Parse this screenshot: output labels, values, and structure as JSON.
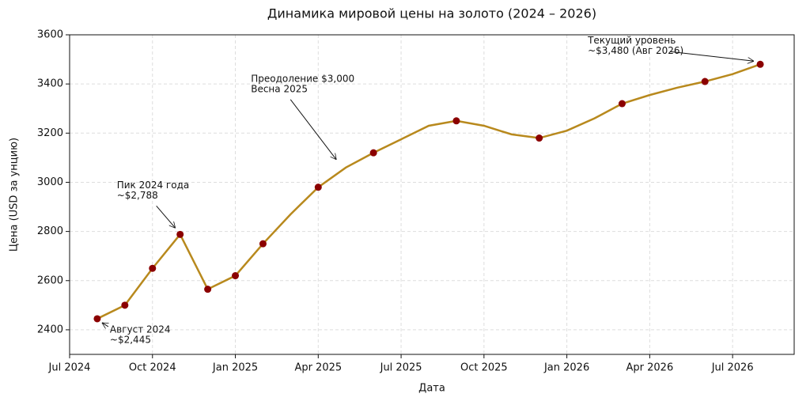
{
  "chart_data": {
    "type": "line",
    "title": "Динамика мировой цены на золото (2024 – 2026)",
    "x_label": "Дата",
    "y_label": "Цена (USD за унцию)",
    "x": [
      "2024-08",
      "2024-09",
      "2024-10",
      "2024-11",
      "2024-12",
      "2025-01",
      "2025-02",
      "2025-03",
      "2025-04",
      "2025-05",
      "2025-06",
      "2025-07",
      "2025-08",
      "2025-09",
      "2025-10",
      "2025-11",
      "2025-12",
      "2026-01",
      "2026-02",
      "2026-03",
      "2026-04",
      "2026-05",
      "2026-06",
      "2026-07",
      "2026-08"
    ],
    "series": [
      {
        "color": "#b8891d",
        "values": [
          2445,
          2500,
          2650,
          2788,
          2565,
          2620,
          2750,
          2870,
          2980,
          3060,
          3120,
          3175,
          3230,
          3250,
          3230,
          3195,
          3180,
          3210,
          3260,
          3320,
          3355,
          3385,
          3410,
          3440,
          3480
        ]
      },
      {
        "color": "#8b0000",
        "x": [
          "2024-08",
          "2024-09",
          "2024-10",
          "2024-11",
          "2024-12",
          "2025-01",
          "2025-02",
          "2025-04",
          "2025-06",
          "2025-09",
          "2025-12",
          "2026-03",
          "2026-06",
          "2026-08"
        ],
        "values": [
          2445,
          2500,
          2650,
          2788,
          2565,
          2620,
          2750,
          2980,
          3120,
          3250,
          3180,
          3320,
          3410,
          3480
        ]
      }
    ],
    "xlim": [
      "2024-07",
      "2026-09"
    ],
    "xticks": [
      {
        "value": "2024-07",
        "label": "Jul 2024"
      },
      {
        "value": "2024-10",
        "label": "Oct 2024"
      },
      {
        "value": "2025-01",
        "label": "Jan 2025"
      },
      {
        "value": "2025-04",
        "label": "Apr 2025"
      },
      {
        "value": "2025-07",
        "label": "Jul 2025"
      },
      {
        "value": "2025-10",
        "label": "Oct 2025"
      },
      {
        "value": "2026-01",
        "label": "Jan 2026"
      },
      {
        "value": "2026-04",
        "label": "Apr 2026"
      },
      {
        "value": "2026-07",
        "label": "Jul 2026"
      }
    ],
    "ylim": [
      2300,
      3600
    ],
    "yticks": [
      2400,
      2600,
      2800,
      3000,
      3200,
      3400,
      3600
    ],
    "grid": true,
    "annotations": [
      {
        "text": [
          "Август 2024",
          "~$2,445"
        ],
        "x": "2024-08",
        "y": 2445
      },
      {
        "text": [
          "Пик 2024 года",
          "~$2,788"
        ],
        "x": "2024-11",
        "y": 2788
      },
      {
        "text": [
          "Преодоление $3,000",
          "Весна 2025"
        ],
        "x": "2025-05",
        "y": 3060
      },
      {
        "text": [
          "Текущий уровень",
          "~$3,480 (Авг 2026)"
        ],
        "x": "2026-08",
        "y": 3480
      }
    ]
  }
}
